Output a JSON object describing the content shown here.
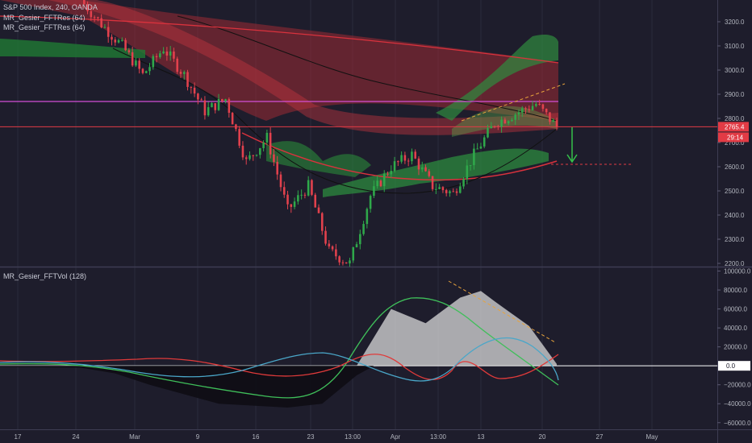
{
  "chart_data": [
    {
      "type": "line",
      "panel": "price",
      "symbol_line": "S&P 500 Index, 240, OANDA",
      "indicators": [
        "MR_Gesier_FFTRes (64)",
        "MR_Gesier_FFTRes (64)"
      ],
      "y_ticks": [
        3200,
        3100,
        3000,
        2900,
        2800,
        2700,
        2600,
        2500,
        2400,
        2300,
        2200
      ],
      "y_tick_labels": [
        "3200.0",
        "3100.0",
        "3000.0",
        "2900.0",
        "2800.0",
        "2700.0",
        "2600.0",
        "2500.0",
        "2400.0",
        "2300.0",
        "2200.0"
      ],
      "ylim": [
        2190,
        3290
      ],
      "last_price": "2765.4",
      "countdown": "29:14",
      "x_index": [
        0,
        6,
        12,
        18,
        24,
        30,
        36,
        42,
        48,
        54,
        60,
        66,
        72,
        78,
        84,
        90,
        96,
        102,
        108,
        114,
        120,
        126,
        132,
        138
      ],
      "close": [
        3290,
        3190,
        3100,
        2980,
        3090,
        2980,
        2830,
        2880,
        2620,
        2720,
        2420,
        2520,
        2250,
        2200,
        2480,
        2600,
        2650,
        2520,
        2490,
        2650,
        2780,
        2820,
        2860,
        2765
      ]
    },
    {
      "type": "area",
      "panel": "oscillator",
      "indicator": "MR_Gesier_FFTVol (128)",
      "y_ticks": [
        100000,
        80000,
        60000,
        40000,
        20000,
        0,
        -20000,
        -40000,
        -60000
      ],
      "y_tick_labels": [
        "100000.0",
        "80000.0",
        "60000.0",
        "40000.0",
        "20000.0",
        "0.0",
        "−20000.0",
        "−40000.0",
        "−60000.0"
      ],
      "ylim": [
        -67000,
        103000
      ],
      "x_index": [
        0,
        10,
        20,
        30,
        40,
        50,
        60,
        70,
        80,
        85,
        90,
        100,
        110,
        116,
        120,
        130,
        134,
        138
      ],
      "volume": [
        -2000,
        -8000,
        -20000,
        -30000,
        -40000,
        -42000,
        -44000,
        -40000,
        -10000,
        30000,
        60000,
        45000,
        72000,
        79000,
        68000,
        42000,
        22000,
        2000
      ],
      "last_value": "0.0"
    }
  ],
  "x_ticks": [
    "17",
    "24",
    "Mar",
    "9",
    "16",
    "23",
    "13:00",
    "Apr",
    "13:00",
    "13",
    "20",
    "27",
    "May"
  ]
}
